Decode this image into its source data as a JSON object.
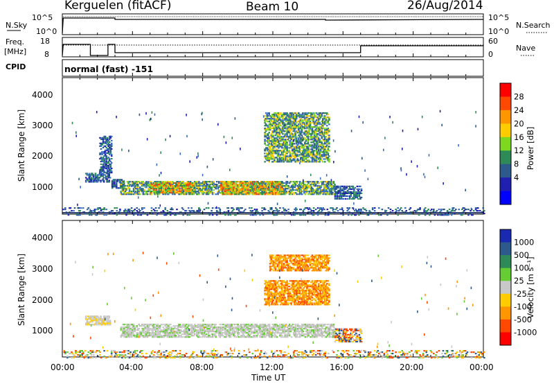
{
  "header": {
    "station": "Kerguelen (fitACF)",
    "beam": "Beam 10",
    "date": "26/Aug/2014"
  },
  "nsky_panel": {
    "left_label": "N.Sky",
    "right_label": "N.Search",
    "ticks_left": [
      "10^5",
      "10^0"
    ],
    "ticks_right": [
      "10^5",
      "10^0"
    ]
  },
  "freq_panel": {
    "left_label_1": "Freq.",
    "left_label_2": "[MHz]",
    "right_label": "Nave",
    "ticks_left": [
      "18",
      "8"
    ],
    "ticks_right": [
      "60",
      "0"
    ]
  },
  "cpid": {
    "label": "CPID",
    "value": "normal (fast) -151"
  },
  "chart_data": [
    {
      "type": "heatmap",
      "panel": "power",
      "ylabel": "Slant Range [km]",
      "yticks": [
        "4000",
        "3000",
        "2000",
        "1000"
      ],
      "ylim": [
        180,
        4600
      ],
      "colorbar": {
        "label": "Power [dB]",
        "ticks": [
          "28",
          "24",
          "20",
          "16",
          "12",
          "8",
          "4"
        ],
        "colors": [
          "#ff0000",
          "#ff4800",
          "#ff9600",
          "#ffcc00",
          "#7fd820",
          "#2e8b57",
          "#2e5a8b",
          "#2020b0",
          "#0000ff"
        ]
      },
      "regions": [
        {
          "t": [
            1.3,
            2.7
          ],
          "r": [
            1250,
            1550
          ],
          "level": "low"
        },
        {
          "t": [
            2.1,
            2.8
          ],
          "r": [
            1550,
            2750
          ],
          "level": "low"
        },
        {
          "t": [
            2.8,
            3.5
          ],
          "r": [
            1050,
            1350
          ],
          "level": "low"
        },
        {
          "t": [
            3.3,
            15.5
          ],
          "r": [
            850,
            1300
          ],
          "level": "mid"
        },
        {
          "t": [
            5.0,
            7.5
          ],
          "r": [
            900,
            1250
          ],
          "level": "high"
        },
        {
          "t": [
            9.0,
            12.5
          ],
          "r": [
            850,
            1300
          ],
          "level": "high"
        },
        {
          "t": [
            11.5,
            15.2
          ],
          "r": [
            1900,
            3500
          ],
          "level": "mid"
        },
        {
          "t": [
            15.5,
            17.0
          ],
          "r": [
            700,
            1150
          ],
          "level": "low"
        },
        {
          "t": [
            0.0,
            24.0
          ],
          "r": [
            180,
            450
          ],
          "level": "noise"
        }
      ]
    },
    {
      "type": "heatmap",
      "panel": "velocity",
      "ylabel": "Slant Range [km]",
      "yticks": [
        "4000",
        "3000",
        "2000",
        "1000"
      ],
      "ylim": [
        180,
        4600
      ],
      "colorbar": {
        "label": "Velocity [m s⁻¹]",
        "ticks": [
          "1000",
          "500",
          "100",
          "25",
          "-25",
          "-100",
          "-500",
          "-1000"
        ],
        "colors": [
          "#1a2ab0",
          "#2e5a8b",
          "#2e8b57",
          "#66cc33",
          "#c8c8c8",
          "#ffcc00",
          "#ff9600",
          "#ff4800",
          "#ff0000"
        ]
      },
      "regions": [
        {
          "t": [
            1.3,
            2.7
          ],
          "r": [
            1250,
            1550
          ],
          "level": "slow"
        },
        {
          "t": [
            3.3,
            15.5
          ],
          "r": [
            850,
            1300
          ],
          "level": "zero"
        },
        {
          "t": [
            11.5,
            15.2
          ],
          "r": [
            1900,
            2700
          ],
          "level": "neg"
        },
        {
          "t": [
            11.8,
            15.2
          ],
          "r": [
            3000,
            3500
          ],
          "level": "neg"
        },
        {
          "t": [
            15.5,
            17.0
          ],
          "r": [
            700,
            1150
          ],
          "level": "mixed"
        },
        {
          "t": [
            0.0,
            24.0
          ],
          "r": [
            180,
            450
          ],
          "level": "noise"
        }
      ]
    }
  ],
  "xaxis": {
    "label": "Time UT",
    "ticks": [
      "00:00",
      "04:00",
      "08:00",
      "12:00",
      "16:00",
      "20:00",
      "00:00"
    ]
  }
}
